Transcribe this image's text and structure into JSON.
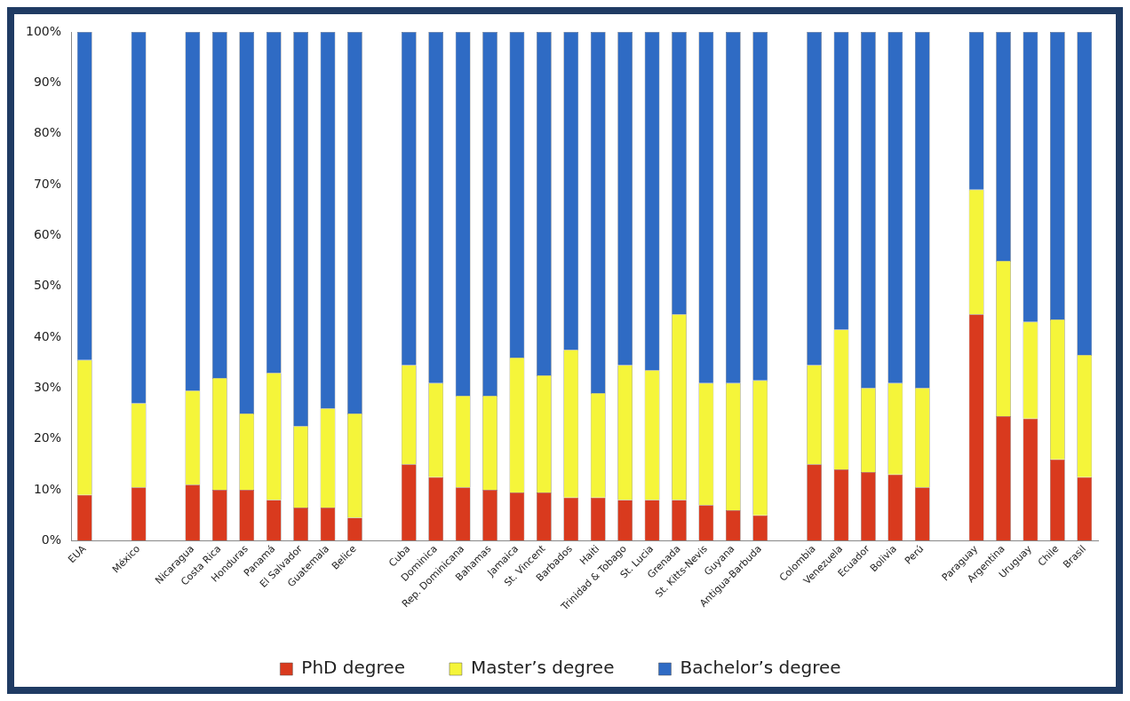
{
  "chart_data": {
    "type": "bar",
    "stacked": true,
    "categories": [
      "EUA",
      null,
      "México",
      null,
      "Nicaragua",
      "Costa Rica",
      "Honduras",
      "Panamá",
      "El Salvador",
      "Guatemala",
      "Belice",
      null,
      "Cuba",
      "Dominica",
      "Rep. Dominicana",
      "Bahamas",
      "Jamaica",
      "St. Vincent",
      "Barbados",
      "Haiti",
      "Trinidad & Tobago",
      "St. Lucia",
      "Grenada",
      "St. Kitts-Nevis",
      "Guyana",
      "Antigua-Barbuda",
      null,
      "Colombia",
      "Venezuela",
      "Ecuador",
      "Bolivia",
      "Perú",
      null,
      "Paraguay",
      "Argentina",
      "Uruguay",
      "Chile",
      "Brasil"
    ],
    "series": [
      {
        "name": "PhD degree",
        "color": "#d93a1e",
        "values": [
          9,
          null,
          10.5,
          null,
          11,
          10,
          10,
          8,
          6.5,
          6.5,
          4.5,
          null,
          15,
          12.5,
          10.5,
          10,
          9.5,
          9.5,
          8.5,
          8.5,
          8,
          8,
          8,
          7,
          6,
          5,
          null,
          15,
          14,
          13.5,
          13,
          10.5,
          null,
          44.5,
          24.5,
          24,
          16,
          12.5
        ]
      },
      {
        "name": "Master’s degree",
        "color": "#f5f53a",
        "values": [
          26.5,
          null,
          16.5,
          null,
          18.5,
          22,
          15,
          25,
          16,
          19.5,
          20.5,
          null,
          19.5,
          18.5,
          18,
          18.5,
          26.5,
          23,
          29,
          20.5,
          26.5,
          25.5,
          36.5,
          24,
          25,
          26.5,
          null,
          19.5,
          27.5,
          16.5,
          18,
          19.5,
          null,
          24.5,
          30.5,
          19,
          27.5,
          24
        ]
      },
      {
        "name": "Bachelor’s degree",
        "color": "#2f6bc4",
        "values": [
          64.5,
          null,
          73,
          null,
          70.5,
          68,
          75,
          67,
          77.5,
          74,
          75,
          null,
          65.5,
          69,
          71.5,
          71.5,
          64,
          67.5,
          62.5,
          71,
          65.5,
          66.5,
          55.5,
          69,
          69,
          68.5,
          null,
          65.5,
          58.5,
          70,
          69,
          70,
          null,
          31,
          45,
          57,
          56.5,
          63.5
        ]
      }
    ],
    "ylim": [
      0,
      100
    ],
    "yticks": [
      {
        "value": 0,
        "label": "0%"
      },
      {
        "value": 10,
        "label": "10%"
      },
      {
        "value": 20,
        "label": "20%"
      },
      {
        "value": 30,
        "label": "30%"
      },
      {
        "value": 40,
        "label": "40%"
      },
      {
        "value": 50,
        "label": "50%"
      },
      {
        "value": 60,
        "label": "60%"
      },
      {
        "value": 70,
        "label": "70%"
      },
      {
        "value": 80,
        "label": "80%"
      },
      {
        "value": 90,
        "label": "90%"
      },
      {
        "value": 100,
        "label": "100%"
      }
    ],
    "grid": false,
    "legend": "bottom"
  }
}
